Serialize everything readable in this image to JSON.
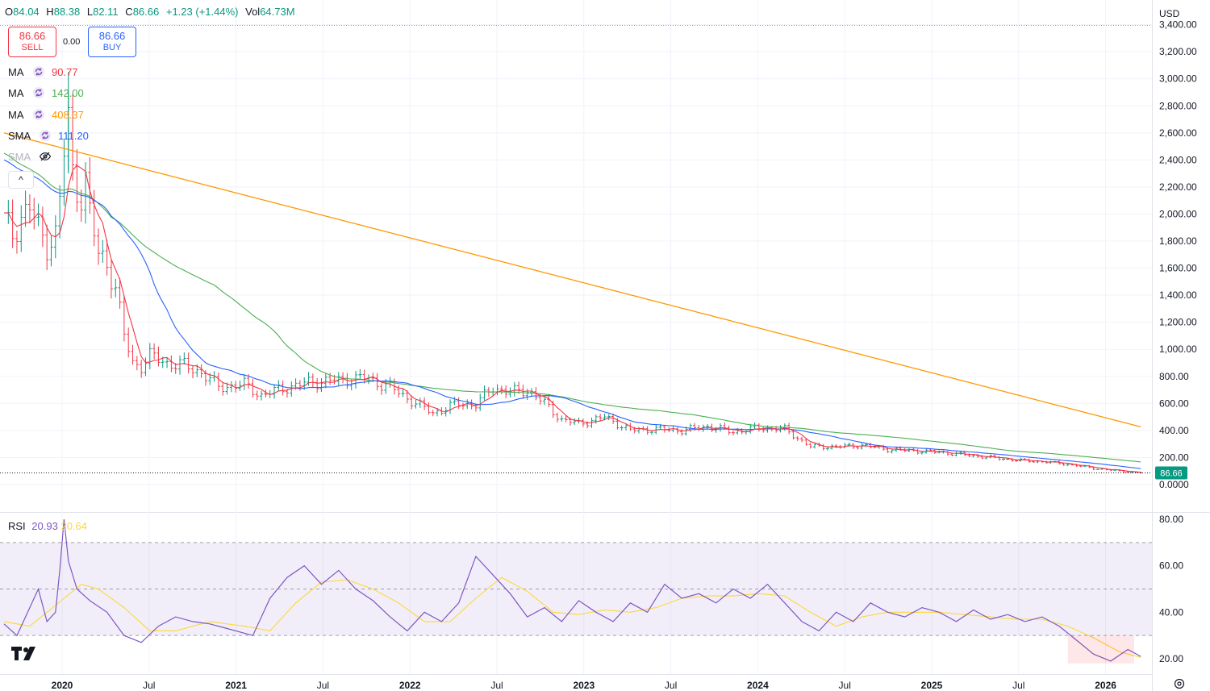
{
  "header": {
    "ohlc": [
      {
        "key": "O",
        "value": "84.04"
      },
      {
        "key": "H",
        "value": "88.38"
      },
      {
        "key": "L",
        "value": "82.11"
      },
      {
        "key": "C",
        "value": "86.66"
      },
      {
        "key": "",
        "value": "+1.23 (+1.44%)"
      },
      {
        "key": "Vol",
        "value": "64.73M"
      }
    ],
    "sell": {
      "price": "86.66",
      "label": "SELL"
    },
    "buy": {
      "price": "86.66",
      "label": "BUY"
    },
    "spread": "0.00",
    "currency": "USD",
    "collapse_glyph": "^"
  },
  "legend": [
    {
      "name": "MA",
      "value": "90.77",
      "color": "#f23645",
      "icon": "refresh-icon"
    },
    {
      "name": "MA",
      "value": "142.00",
      "color": "#4caf50",
      "icon": "refresh-icon"
    },
    {
      "name": "MA",
      "value": "408.37",
      "color": "#ff9800",
      "icon": "refresh-icon"
    },
    {
      "name": "SMA",
      "value": "111.20",
      "color": "#2962ff",
      "icon": "refresh-icon"
    },
    {
      "name": "SMA",
      "value": "",
      "color": "#b2b5be",
      "icon": "eye-off-icon"
    }
  ],
  "rsi_legend": {
    "name": "RSI",
    "value": "20.93",
    "ma_value": "20.64",
    "color": "#7e57c2",
    "ma_color": "#fdd835"
  },
  "chart_data": [
    {
      "type": "ohlc",
      "title": "",
      "ylim": [
        -100,
        3500
      ],
      "y_ticks": [
        "0.0000",
        "200.00",
        "400.00",
        "600.00",
        "800.00",
        "1,000.00",
        "1,200.00",
        "1,400.00",
        "1,600.00",
        "1,800.00",
        "2,000.00",
        "2,200.00",
        "2,400.00",
        "2,600.00",
        "2,800.00",
        "3,000.00",
        "3,200.00",
        "3,400.00"
      ],
      "x_ticks": [
        "2020",
        "Jul",
        "2021",
        "Jul",
        "2022",
        "Jul",
        "2023",
        "Jul",
        "2024",
        "Jul",
        "2025",
        "Jul",
        "2026"
      ],
      "last_price": "86.66",
      "series_close": [
        {
          "t": 0,
          "v": 1950
        },
        {
          "t": 2,
          "v": 1850
        },
        {
          "t": 4,
          "v": 1990
        },
        {
          "t": 6,
          "v": 2050
        },
        {
          "t": 8,
          "v": 1880
        },
        {
          "t": 10,
          "v": 1780
        },
        {
          "t": 12,
          "v": 1850
        },
        {
          "t": 13,
          "v": 2100
        },
        {
          "t": 14,
          "v": 2450
        },
        {
          "t": 15,
          "v": 2700
        },
        {
          "t": 16,
          "v": 2300
        },
        {
          "t": 17,
          "v": 2200
        },
        {
          "t": 18,
          "v": 2150
        },
        {
          "t": 19,
          "v": 2250
        },
        {
          "t": 20,
          "v": 2000
        },
        {
          "t": 22,
          "v": 1700
        },
        {
          "t": 24,
          "v": 1650
        },
        {
          "t": 26,
          "v": 1450
        },
        {
          "t": 28,
          "v": 1100
        },
        {
          "t": 30,
          "v": 900
        },
        {
          "t": 32,
          "v": 880
        },
        {
          "t": 34,
          "v": 950
        },
        {
          "t": 38,
          "v": 900
        },
        {
          "t": 42,
          "v": 880
        },
        {
          "t": 46,
          "v": 830
        },
        {
          "t": 50,
          "v": 720
        },
        {
          "t": 56,
          "v": 740
        },
        {
          "t": 60,
          "v": 660
        },
        {
          "t": 66,
          "v": 720
        },
        {
          "t": 72,
          "v": 760
        },
        {
          "t": 78,
          "v": 770
        },
        {
          "t": 84,
          "v": 790
        },
        {
          "t": 90,
          "v": 720
        },
        {
          "t": 96,
          "v": 600
        },
        {
          "t": 100,
          "v": 530
        },
        {
          "t": 106,
          "v": 600
        },
        {
          "t": 110,
          "v": 590
        },
        {
          "t": 114,
          "v": 720
        },
        {
          "t": 118,
          "v": 680
        },
        {
          "t": 122,
          "v": 700
        },
        {
          "t": 126,
          "v": 600
        },
        {
          "t": 130,
          "v": 480
        },
        {
          "t": 134,
          "v": 450
        },
        {
          "t": 140,
          "v": 500
        },
        {
          "t": 146,
          "v": 400
        },
        {
          "t": 152,
          "v": 410
        },
        {
          "t": 158,
          "v": 400
        },
        {
          "t": 164,
          "v": 430
        },
        {
          "t": 170,
          "v": 390
        },
        {
          "t": 176,
          "v": 420
        },
        {
          "t": 182,
          "v": 410
        },
        {
          "t": 188,
          "v": 280
        },
        {
          "t": 194,
          "v": 280
        },
        {
          "t": 200,
          "v": 290
        },
        {
          "t": 206,
          "v": 260
        },
        {
          "t": 212,
          "v": 250
        },
        {
          "t": 218,
          "v": 240
        },
        {
          "t": 224,
          "v": 220
        },
        {
          "t": 230,
          "v": 200
        },
        {
          "t": 236,
          "v": 180
        },
        {
          "t": 242,
          "v": 170
        },
        {
          "t": 248,
          "v": 150
        },
        {
          "t": 254,
          "v": 120
        },
        {
          "t": 260,
          "v": 100
        },
        {
          "t": 265,
          "v": 86.66
        }
      ],
      "series": [
        {
          "name": "MA",
          "color": "#f23645",
          "value": "90.77"
        },
        {
          "name": "MA",
          "color": "#4caf50",
          "value": "142.00"
        },
        {
          "name": "MA",
          "color": "#ff9800",
          "value": "408.37"
        },
        {
          "name": "SMA",
          "color": "#2962ff",
          "value": "111.20"
        }
      ]
    },
    {
      "type": "line",
      "title": "",
      "ylim": [
        14,
        82
      ],
      "y_ticks": [
        "20.00",
        "40.00",
        "60.00",
        "80.00"
      ],
      "band": [
        30,
        70
      ],
      "mid": 50,
      "rsi": [
        {
          "t": 0,
          "v": 35
        },
        {
          "t": 3,
          "v": 30
        },
        {
          "t": 6,
          "v": 42
        },
        {
          "t": 8,
          "v": 50
        },
        {
          "t": 10,
          "v": 36
        },
        {
          "t": 12,
          "v": 40
        },
        {
          "t": 13,
          "v": 58
        },
        {
          "t": 14,
          "v": 80
        },
        {
          "t": 15,
          "v": 62
        },
        {
          "t": 17,
          "v": 50
        },
        {
          "t": 20,
          "v": 45
        },
        {
          "t": 24,
          "v": 40
        },
        {
          "t": 28,
          "v": 30
        },
        {
          "t": 32,
          "v": 27
        },
        {
          "t": 36,
          "v": 34
        },
        {
          "t": 40,
          "v": 38
        },
        {
          "t": 44,
          "v": 36
        },
        {
          "t": 48,
          "v": 35
        },
        {
          "t": 52,
          "v": 33
        },
        {
          "t": 58,
          "v": 30
        },
        {
          "t": 62,
          "v": 46
        },
        {
          "t": 66,
          "v": 55
        },
        {
          "t": 70,
          "v": 60
        },
        {
          "t": 74,
          "v": 52
        },
        {
          "t": 78,
          "v": 58
        },
        {
          "t": 82,
          "v": 50
        },
        {
          "t": 86,
          "v": 45
        },
        {
          "t": 90,
          "v": 38
        },
        {
          "t": 94,
          "v": 32
        },
        {
          "t": 98,
          "v": 40
        },
        {
          "t": 102,
          "v": 36
        },
        {
          "t": 106,
          "v": 44
        },
        {
          "t": 110,
          "v": 64
        },
        {
          "t": 114,
          "v": 56
        },
        {
          "t": 118,
          "v": 48
        },
        {
          "t": 122,
          "v": 38
        },
        {
          "t": 126,
          "v": 42
        },
        {
          "t": 130,
          "v": 36
        },
        {
          "t": 134,
          "v": 45
        },
        {
          "t": 138,
          "v": 40
        },
        {
          "t": 142,
          "v": 36
        },
        {
          "t": 146,
          "v": 44
        },
        {
          "t": 150,
          "v": 40
        },
        {
          "t": 154,
          "v": 52
        },
        {
          "t": 158,
          "v": 46
        },
        {
          "t": 162,
          "v": 48
        },
        {
          "t": 166,
          "v": 44
        },
        {
          "t": 170,
          "v": 50
        },
        {
          "t": 174,
          "v": 46
        },
        {
          "t": 178,
          "v": 52
        },
        {
          "t": 182,
          "v": 44
        },
        {
          "t": 186,
          "v": 36
        },
        {
          "t": 190,
          "v": 32
        },
        {
          "t": 194,
          "v": 40
        },
        {
          "t": 198,
          "v": 36
        },
        {
          "t": 202,
          "v": 44
        },
        {
          "t": 206,
          "v": 40
        },
        {
          "t": 210,
          "v": 38
        },
        {
          "t": 214,
          "v": 42
        },
        {
          "t": 218,
          "v": 40
        },
        {
          "t": 222,
          "v": 36
        },
        {
          "t": 226,
          "v": 41
        },
        {
          "t": 230,
          "v": 37
        },
        {
          "t": 234,
          "v": 39
        },
        {
          "t": 238,
          "v": 36
        },
        {
          "t": 242,
          "v": 38
        },
        {
          "t": 246,
          "v": 34
        },
        {
          "t": 250,
          "v": 28
        },
        {
          "t": 254,
          "v": 22
        },
        {
          "t": 258,
          "v": 19
        },
        {
          "t": 262,
          "v": 24
        },
        {
          "t": 265,
          "v": 21
        }
      ],
      "rsi_ma": [
        {
          "t": 0,
          "v": 36
        },
        {
          "t": 6,
          "v": 34
        },
        {
          "t": 10,
          "v": 40
        },
        {
          "t": 14,
          "v": 46
        },
        {
          "t": 18,
          "v": 52
        },
        {
          "t": 22,
          "v": 50
        },
        {
          "t": 28,
          "v": 42
        },
        {
          "t": 34,
          "v": 32
        },
        {
          "t": 40,
          "v": 32
        },
        {
          "t": 48,
          "v": 36
        },
        {
          "t": 56,
          "v": 34
        },
        {
          "t": 62,
          "v": 32
        },
        {
          "t": 68,
          "v": 44
        },
        {
          "t": 74,
          "v": 53
        },
        {
          "t": 80,
          "v": 54
        },
        {
          "t": 86,
          "v": 50
        },
        {
          "t": 92,
          "v": 44
        },
        {
          "t": 98,
          "v": 36
        },
        {
          "t": 104,
          "v": 36
        },
        {
          "t": 110,
          "v": 46
        },
        {
          "t": 116,
          "v": 55
        },
        {
          "t": 122,
          "v": 49
        },
        {
          "t": 128,
          "v": 40
        },
        {
          "t": 134,
          "v": 39
        },
        {
          "t": 140,
          "v": 41
        },
        {
          "t": 146,
          "v": 40
        },
        {
          "t": 152,
          "v": 42
        },
        {
          "t": 158,
          "v": 46
        },
        {
          "t": 164,
          "v": 47
        },
        {
          "t": 170,
          "v": 47
        },
        {
          "t": 176,
          "v": 48
        },
        {
          "t": 182,
          "v": 47
        },
        {
          "t": 188,
          "v": 40
        },
        {
          "t": 194,
          "v": 34
        },
        {
          "t": 200,
          "v": 38
        },
        {
          "t": 206,
          "v": 40
        },
        {
          "t": 212,
          "v": 40
        },
        {
          "t": 218,
          "v": 40
        },
        {
          "t": 224,
          "v": 39
        },
        {
          "t": 230,
          "v": 38
        },
        {
          "t": 236,
          "v": 37
        },
        {
          "t": 242,
          "v": 37
        },
        {
          "t": 248,
          "v": 34
        },
        {
          "t": 254,
          "v": 29
        },
        {
          "t": 260,
          "v": 23
        },
        {
          "t": 265,
          "v": 20.6
        }
      ]
    }
  ],
  "icons": {
    "logo": "tradingview-logo-icon",
    "settings": "gear-icon"
  }
}
